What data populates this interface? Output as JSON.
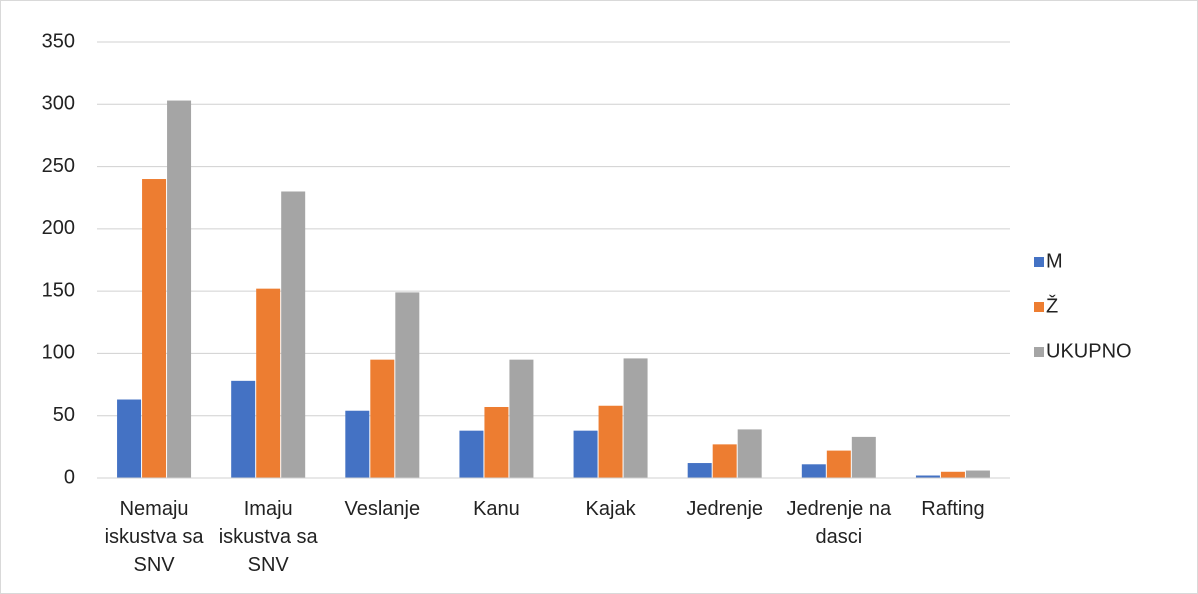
{
  "chart_data": {
    "type": "bar",
    "categories": [
      "Nemaju iskustva sa SNV",
      "Imaju iskustva sa SNV",
      "Veslanje",
      "Kanu",
      "Kajak",
      "Jedrenje",
      "Jedrenje na dasci",
      "Rafting"
    ],
    "series": [
      {
        "name": "M",
        "color": "#4472c4",
        "values": [
          63,
          78,
          54,
          38,
          38,
          12,
          11,
          2
        ]
      },
      {
        "name": "Ž",
        "color": "#ed7d31",
        "values": [
          240,
          152,
          95,
          57,
          58,
          27,
          22,
          5
        ]
      },
      {
        "name": "UKUPNO",
        "color": "#a5a5a5",
        "values": [
          303,
          230,
          149,
          95,
          96,
          39,
          33,
          6
        ]
      }
    ],
    "ylim": [
      0,
      350
    ],
    "yticks": [
      0,
      50,
      100,
      150,
      200,
      250,
      300,
      350
    ],
    "grid": true,
    "legend": "right"
  }
}
